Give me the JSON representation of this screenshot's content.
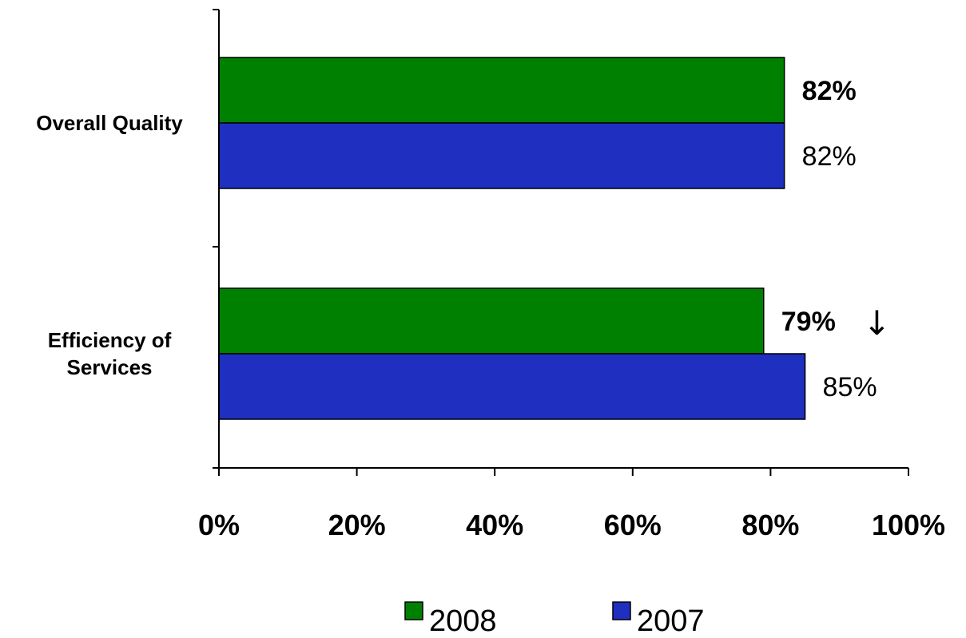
{
  "chart_data": {
    "type": "bar",
    "orientation": "horizontal",
    "title": "",
    "xlabel": "",
    "ylabel": "",
    "xlim": [
      0,
      100
    ],
    "x_ticks": [
      "0%",
      "20%",
      "40%",
      "60%",
      "80%",
      "100%"
    ],
    "grid": false,
    "legend_position": "bottom",
    "categories": [
      "Overall Quality",
      "Efficiency of Services"
    ],
    "category_label_lines": [
      [
        "Overall Quality"
      ],
      [
        "Efficiency of",
        "Services"
      ]
    ],
    "series": [
      {
        "name": "2008",
        "color": "#008000",
        "values": [
          82,
          79
        ],
        "labels": [
          "82%",
          "79%"
        ],
        "label_bold": true,
        "annotations": [
          "",
          "↓"
        ]
      },
      {
        "name": "2007",
        "color": "#1f2fbf",
        "values": [
          82,
          85
        ],
        "labels": [
          "82%",
          "85%"
        ],
        "label_bold": false,
        "annotations": [
          "",
          ""
        ]
      }
    ]
  }
}
